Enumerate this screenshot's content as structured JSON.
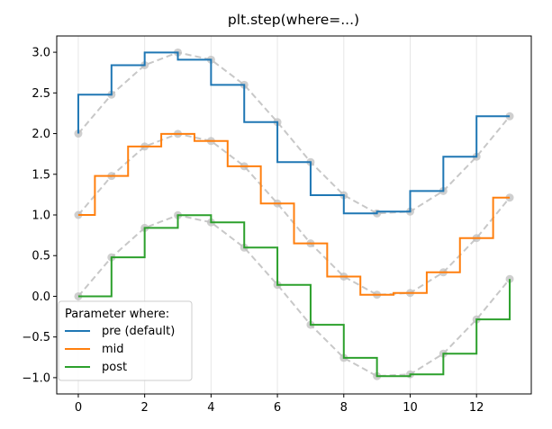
{
  "chart_data": {
    "type": "line",
    "subtype": "step",
    "title": "plt.step(where=...)",
    "xlabel": "",
    "ylabel": "",
    "xlim": [
      -0.65,
      13.65
    ],
    "ylim": [
      -1.2,
      3.2
    ],
    "x_ticks": [
      0,
      2,
      4,
      6,
      8,
      10,
      12
    ],
    "y_ticks": [
      -1.0,
      -0.5,
      0.0,
      0.5,
      1.0,
      1.5,
      2.0,
      2.5,
      3.0
    ],
    "y_tick_labels": [
      "−1.0",
      "−0.5",
      "0.0",
      "0.5",
      "1.0",
      "1.5",
      "2.0",
      "2.5",
      "3.0"
    ],
    "grid": {
      "x": true,
      "y": false
    },
    "x": [
      0,
      1,
      2,
      3,
      4,
      5,
      6,
      7,
      8,
      9,
      10,
      11,
      12,
      13
    ],
    "series": [
      {
        "name": "pre (default)",
        "where": "pre",
        "offset": 2,
        "color": "#1f77b4",
        "values": [
          2.0,
          2.479,
          2.841,
          2.997,
          2.909,
          2.599,
          2.141,
          1.65,
          1.243,
          1.019,
          1.041,
          1.295,
          1.716,
          2.213
        ]
      },
      {
        "name": "mid",
        "where": "mid",
        "offset": 1,
        "color": "#ff7f0e",
        "values": [
          1.0,
          1.479,
          1.841,
          1.997,
          1.909,
          1.599,
          1.141,
          0.65,
          0.243,
          0.019,
          0.041,
          0.295,
          0.716,
          1.213
        ]
      },
      {
        "name": "post",
        "where": "post",
        "offset": 0,
        "color": "#2ca02c",
        "values": [
          0.0,
          0.479,
          0.841,
          0.997,
          0.909,
          0.599,
          0.141,
          -0.35,
          -0.757,
          -0.981,
          -0.959,
          -0.705,
          -0.284,
          0.213
        ]
      }
    ],
    "reference_style": {
      "color": "#c8c8c8",
      "dash": "dashed",
      "markers": "circle"
    },
    "legend": {
      "title": "Parameter where:",
      "placement": "lower-left"
    }
  }
}
